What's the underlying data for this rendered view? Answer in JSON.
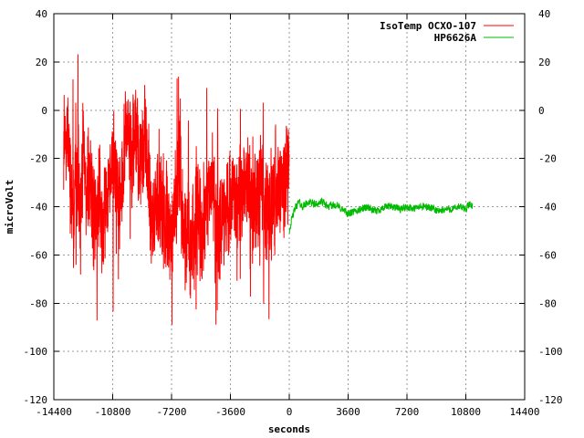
{
  "chart_data": {
    "type": "line",
    "xlabel": "seconds",
    "ylabel": "microVolt",
    "xlim": [
      -14400,
      14400
    ],
    "ylim": [
      -120,
      40
    ],
    "x_ticks": [
      -14400,
      -10800,
      -7200,
      -3600,
      0,
      3600,
      7200,
      10800,
      14400
    ],
    "y_ticks": [
      40,
      20,
      0,
      -20,
      -40,
      -60,
      -80,
      -100,
      -120
    ],
    "x_tick_labels": [
      "-14400",
      "-10800",
      "-7200",
      "-3600",
      "0",
      "3600",
      "7200",
      "10800",
      "14400"
    ],
    "y_tick_labels": [
      "40",
      "20",
      "0",
      "-20",
      "-40",
      "-60",
      "-80",
      "-100",
      "-120"
    ],
    "grid": true,
    "legend_position": "top-right",
    "mirrored_y_axis": true,
    "series": [
      {
        "name": "IsoTemp OCXO-107",
        "color": "#ff0000",
        "x_range": [
          -13800,
          0
        ],
        "points": [
          [
            -13800,
            -20
          ],
          [
            -13600,
            -10
          ],
          [
            -13400,
            -28
          ],
          [
            -13200,
            -40
          ],
          [
            -13000,
            -30
          ],
          [
            -12800,
            -45
          ],
          [
            -12600,
            -15
          ],
          [
            -12400,
            -35
          ],
          [
            -12200,
            -25
          ],
          [
            -12000,
            -42
          ],
          [
            -11800,
            -48
          ],
          [
            -11600,
            -32
          ],
          [
            -11400,
            -55
          ],
          [
            -11200,
            -40
          ],
          [
            -11000,
            -28
          ],
          [
            -10800,
            -18
          ],
          [
            -10600,
            -30
          ],
          [
            -10400,
            -36
          ],
          [
            -10200,
            -24
          ],
          [
            -10000,
            -12
          ],
          [
            -9800,
            -8
          ],
          [
            -9600,
            -20
          ],
          [
            -9400,
            -2
          ],
          [
            -9200,
            -25
          ],
          [
            -9000,
            -15
          ],
          [
            -8800,
            -10
          ],
          [
            -8600,
            -30
          ],
          [
            -8400,
            -44
          ],
          [
            -8200,
            -38
          ],
          [
            -8000,
            -40
          ],
          [
            -7800,
            -36
          ],
          [
            -7600,
            -48
          ],
          [
            -7400,
            -45
          ],
          [
            -7200,
            -55
          ],
          [
            -7000,
            -40
          ],
          [
            -6800,
            -30
          ],
          [
            -6600,
            -38
          ],
          [
            -6400,
            -55
          ],
          [
            -6200,
            -46
          ],
          [
            -6000,
            -58
          ],
          [
            -5800,
            -42
          ],
          [
            -5600,
            -38
          ],
          [
            -5400,
            -50
          ],
          [
            -5200,
            -44
          ],
          [
            -5000,
            -40
          ],
          [
            -4800,
            -30
          ],
          [
            -4600,
            -34
          ],
          [
            -4400,
            -55
          ],
          [
            -4200,
            -50
          ],
          [
            -4000,
            -45
          ],
          [
            -3800,
            -42
          ],
          [
            -3600,
            -38
          ],
          [
            -3400,
            -35
          ],
          [
            -3200,
            -40
          ],
          [
            -3000,
            -32
          ],
          [
            -2800,
            -30
          ],
          [
            -2600,
            -28
          ],
          [
            -2400,
            -35
          ],
          [
            -2200,
            -42
          ],
          [
            -2000,
            -38
          ],
          [
            -1800,
            -32
          ],
          [
            -1600,
            -36
          ],
          [
            -1400,
            -45
          ],
          [
            -1200,
            -40
          ],
          [
            -1000,
            -38
          ],
          [
            -800,
            -34
          ],
          [
            -600,
            -36
          ],
          [
            -400,
            -30
          ],
          [
            -200,
            -28
          ],
          [
            0,
            -25
          ]
        ]
      },
      {
        "name": "HP6626A",
        "color": "#00bb00",
        "x_range": [
          0,
          11200
        ],
        "points": [
          [
            0,
            -50
          ],
          [
            200,
            -44
          ],
          [
            400,
            -40
          ],
          [
            600,
            -38
          ],
          [
            800,
            -40
          ],
          [
            1200,
            -38
          ],
          [
            1600,
            -39
          ],
          [
            2000,
            -38
          ],
          [
            2400,
            -40
          ],
          [
            2800,
            -39
          ],
          [
            3200,
            -41
          ],
          [
            3600,
            -43
          ],
          [
            4000,
            -42
          ],
          [
            4400,
            -41
          ],
          [
            4800,
            -40
          ],
          [
            5200,
            -42
          ],
          [
            5600,
            -41
          ],
          [
            6000,
            -40
          ],
          [
            6400,
            -40
          ],
          [
            6800,
            -41
          ],
          [
            7200,
            -40
          ],
          [
            7600,
            -41
          ],
          [
            8000,
            -40
          ],
          [
            8400,
            -40
          ],
          [
            8800,
            -41
          ],
          [
            9200,
            -42
          ],
          [
            9600,
            -41
          ],
          [
            10000,
            -41
          ],
          [
            10400,
            -40
          ],
          [
            10800,
            -41
          ],
          [
            11000,
            -39
          ],
          [
            11200,
            -40
          ]
        ]
      }
    ]
  }
}
